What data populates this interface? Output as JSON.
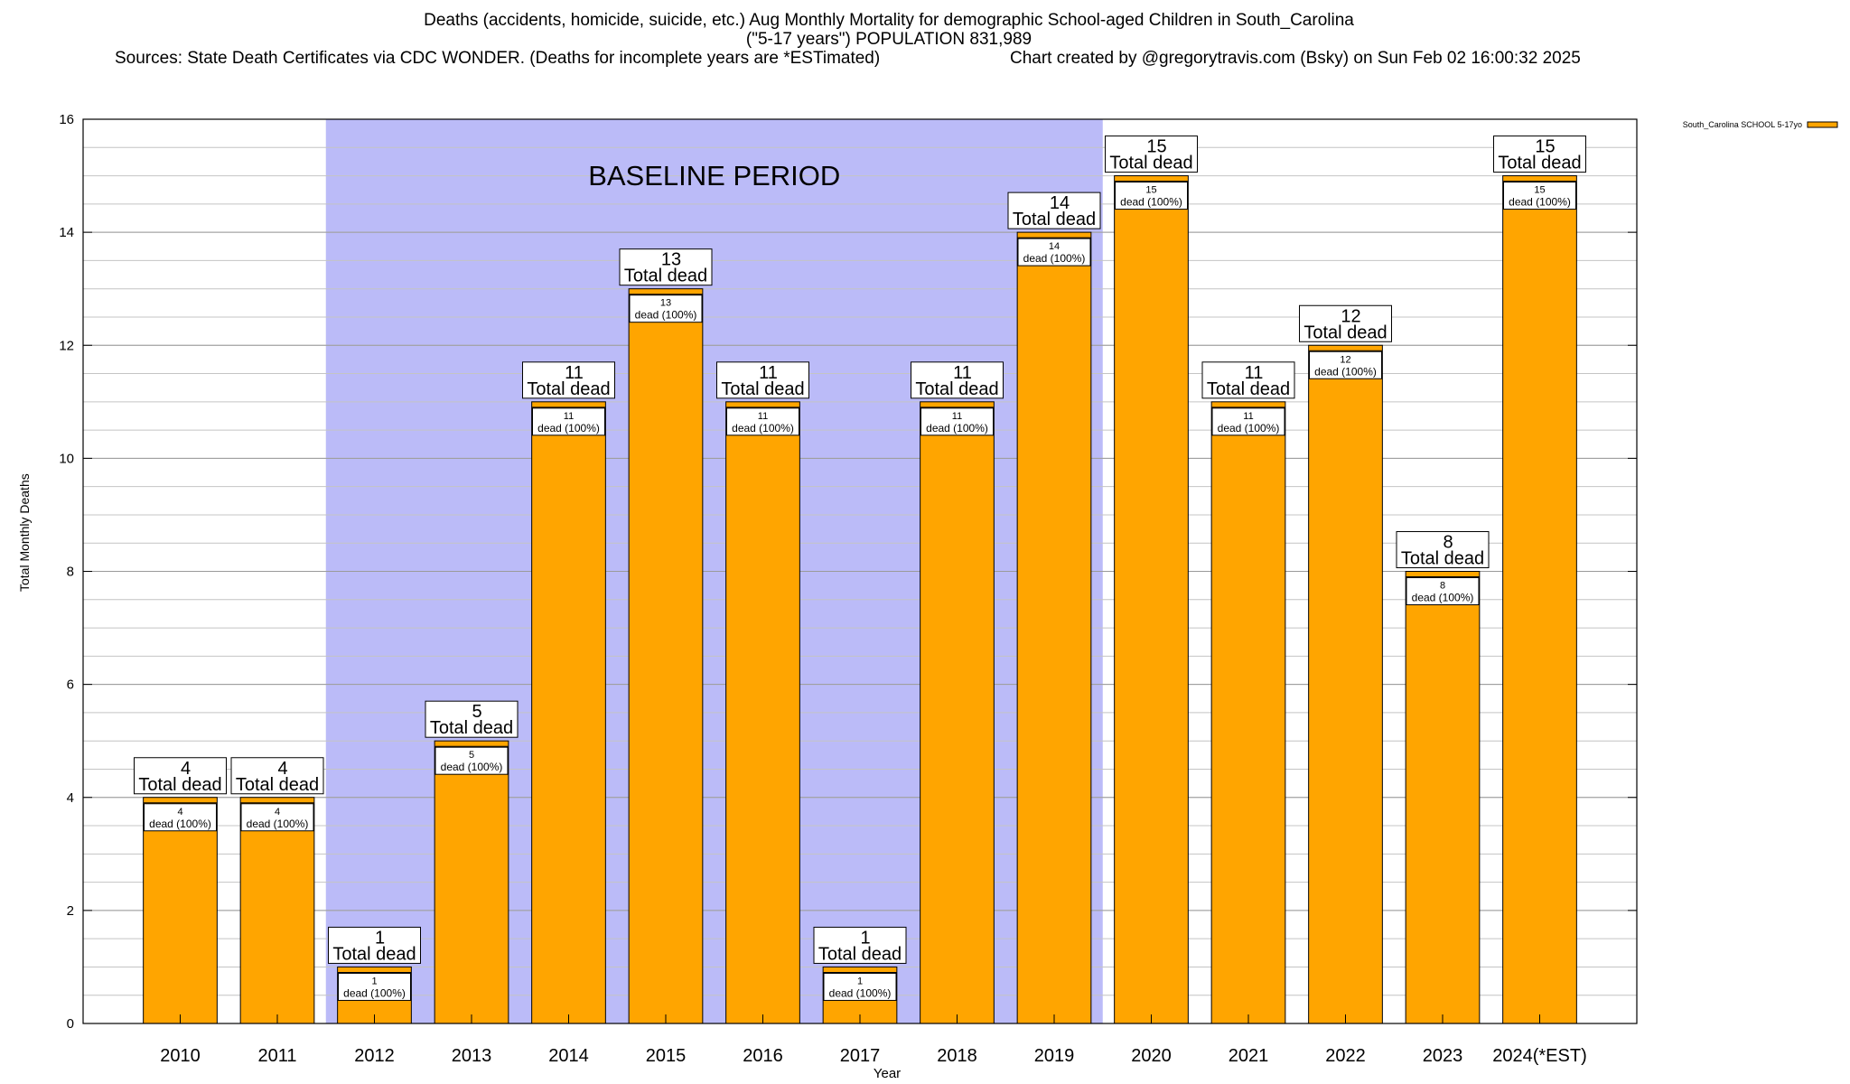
{
  "chart_data": {
    "type": "bar",
    "title_lines": [
      "Deaths (accidents, homicide, suicide, etc.) Aug Monthly Mortality for demographic School-aged Children in South_Carolina",
      "(\"5-17 years\") POPULATION 831,989"
    ],
    "sources": "Sources: State Death Certificates via CDC WONDER. (Deaths for incomplete years are *ESTimated)",
    "credit": "Chart created by @gregorytravis.com (Bsky) on Sun Feb 02 16:00:32 2025",
    "xlabel": "Year",
    "ylabel": "Total Monthly Deaths",
    "ylim": [
      0,
      16
    ],
    "yticks": [
      0,
      2,
      4,
      6,
      8,
      10,
      12,
      14,
      16
    ],
    "grid": true,
    "legend_position": "top-right",
    "categories": [
      "2010",
      "2011",
      "2012",
      "2013",
      "2014",
      "2015",
      "2016",
      "2017",
      "2018",
      "2019",
      "2020",
      "2021",
      "2022",
      "2023",
      "2024(*EST)"
    ],
    "series": [
      {
        "name": "South_Carolina SCHOOL 5-17yo",
        "color": "#FFA500",
        "values": [
          4,
          4,
          1,
          5,
          11,
          13,
          11,
          1,
          11,
          14,
          15,
          11,
          12,
          8,
          15
        ]
      }
    ],
    "total_label_suffix": "Total dead",
    "inner_label_suffix": "dead (100%)",
    "baseline": {
      "label": "BASELINE PERIOD",
      "start": "2012",
      "end": "2019",
      "color": "#BBBBF8"
    }
  }
}
